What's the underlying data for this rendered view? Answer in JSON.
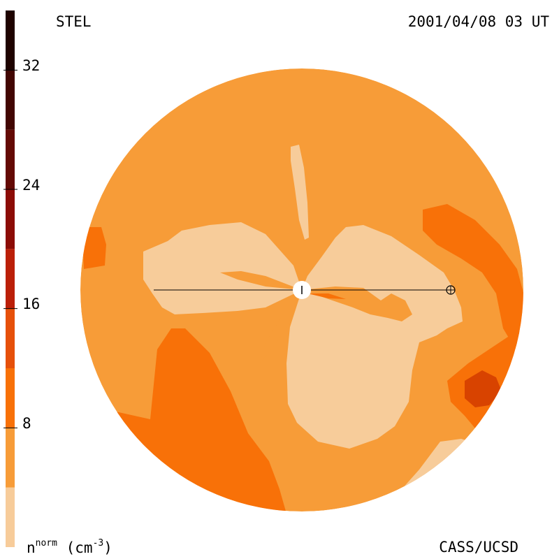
{
  "header": {
    "instrument": "STEL",
    "timestamp": "2001/04/08 03 UT"
  },
  "footer": {
    "credit": "CASS/UCSD",
    "unit_symbol": "n",
    "unit_superscript": "norm",
    "unit_text": "(cm",
    "unit_exponent": "-3",
    "unit_close": ")"
  },
  "colorbar": {
    "tick_labels": [
      "32",
      "24",
      "16",
      "8"
    ],
    "tick_values": [
      32,
      24,
      16,
      8
    ],
    "range": [
      0,
      36
    ],
    "levels": [
      {
        "from": 0,
        "to": 4,
        "color": "#f7cc9a"
      },
      {
        "from": 4,
        "to": 8,
        "color": "#f79c38"
      },
      {
        "from": 8,
        "to": 12,
        "color": "#f87108"
      },
      {
        "from": 12,
        "to": 16,
        "color": "#e6500a"
      },
      {
        "from": 16,
        "to": 20,
        "color": "#bb1f08"
      },
      {
        "from": 20,
        "to": 24,
        "color": "#8c0c06"
      },
      {
        "from": 24,
        "to": 28,
        "color": "#640a04"
      },
      {
        "from": 28,
        "to": 32,
        "color": "#420602"
      },
      {
        "from": 32,
        "to": 36,
        "color": "#1e0300"
      }
    ]
  },
  "colors": {
    "background_disk": "#f79c38",
    "low_density": "#f7cc9a",
    "medium_density": "#f87108",
    "high_density": "#d84300",
    "sun": "#ffffff",
    "line": "#000000"
  },
  "icons": {
    "sun": "sun-marker",
    "earth": "earth-icon"
  }
}
